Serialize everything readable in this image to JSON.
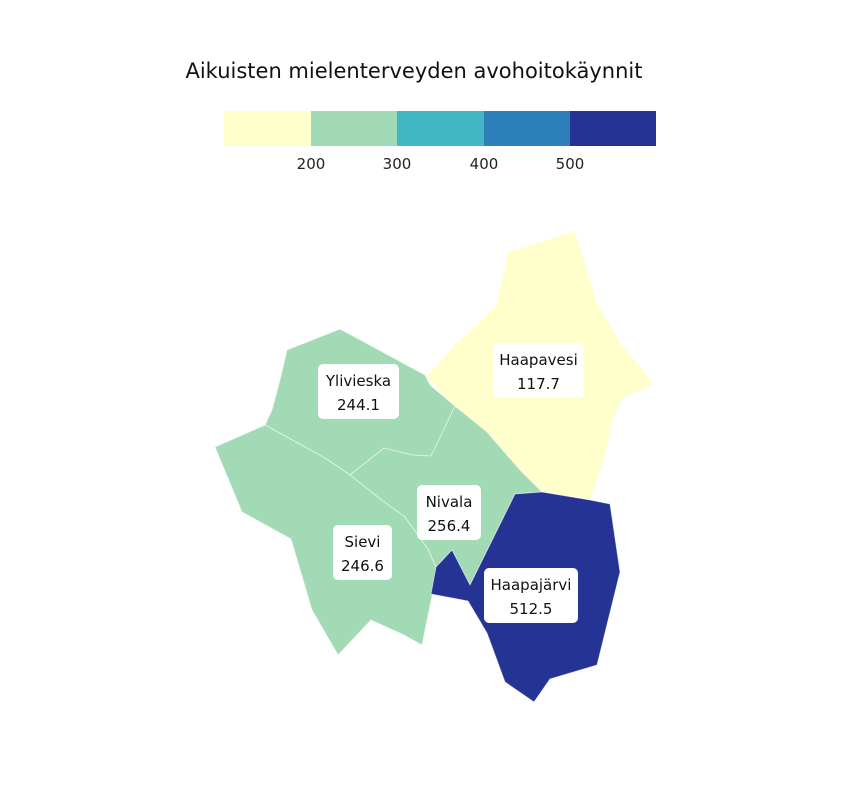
{
  "chart_data": {
    "type": "choropleth",
    "title": "Aikuisten mielenterveyden avohoitokäynnit",
    "legend": {
      "placement": "top",
      "ticks": [
        "200",
        "300",
        "400",
        "500"
      ],
      "bins": [
        {
          "color": "#ffffcc"
        },
        {
          "color": "#a1dab4"
        },
        {
          "color": "#41b6c4"
        },
        {
          "color": "#2c7fb8"
        },
        {
          "color": "#253494"
        }
      ]
    },
    "regions": [
      {
        "name": "Haapavesi",
        "value": "117.7",
        "color": "#ffffcc"
      },
      {
        "name": "Ylivieska",
        "value": "244.1",
        "color": "#a1dab4"
      },
      {
        "name": "Sievi",
        "value": "246.6",
        "color": "#a1dab4"
      },
      {
        "name": "Nivala",
        "value": "256.4",
        "color": "#a1dab4"
      },
      {
        "name": "Haapajärvi",
        "value": "512.5",
        "color": "#253494"
      }
    ]
  }
}
